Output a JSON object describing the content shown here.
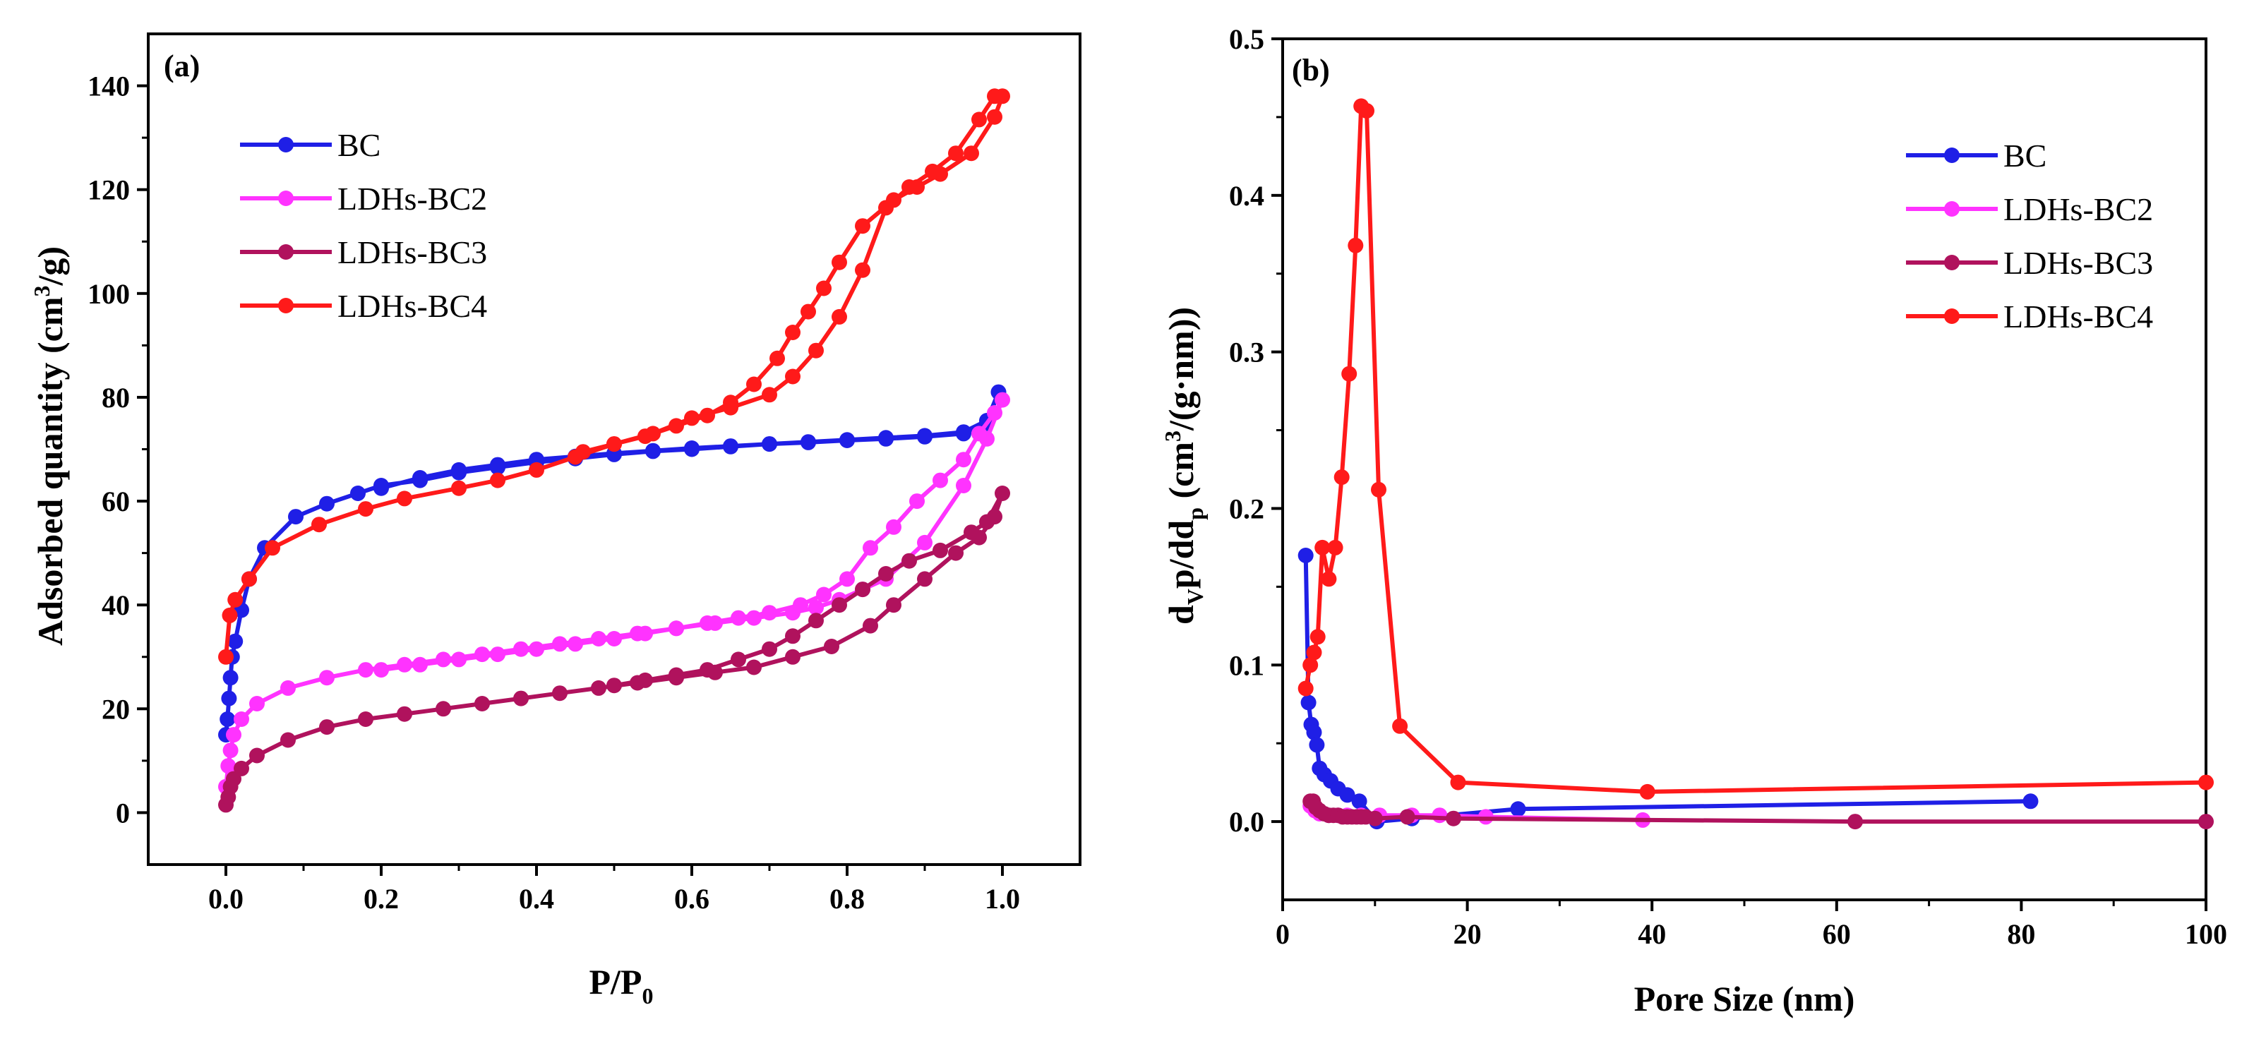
{
  "chart_data": [
    {
      "panel": "(a)",
      "type": "line",
      "xlabel": "P/P",
      "xlabel_sub": "0",
      "ylabel": "Adsorbed quantity (cm",
      "ylabel_sup": "3",
      "ylabel_end": "/g)",
      "xlim": [
        -0.1,
        1.1
      ],
      "ylim": [
        -10,
        150
      ],
      "xticks": [
        0.0,
        0.2,
        0.4,
        0.6,
        0.8,
        1.0
      ],
      "xtick_labels": [
        "0.0",
        "0.2",
        "0.4",
        "0.6",
        "0.8",
        "1.0"
      ],
      "yticks": [
        0,
        20,
        40,
        60,
        80,
        100,
        120,
        140
      ],
      "ytick_labels": [
        "0",
        "20",
        "40",
        "60",
        "80",
        "100",
        "120",
        "140"
      ],
      "legend": {
        "position": "top-left"
      },
      "series": [
        {
          "name": "BC",
          "color": "#1f1fe6",
          "x": [
            0.0,
            0.002,
            0.004,
            0.006,
            0.008,
            0.012,
            0.02,
            0.03,
            0.05,
            0.09,
            0.13,
            0.17,
            0.2,
            0.25,
            0.3,
            0.35,
            0.4,
            0.45,
            0.5,
            0.55,
            0.6,
            0.65,
            0.7,
            0.75,
            0.8,
            0.85,
            0.9,
            0.95,
            0.98,
            0.995,
            0.98,
            0.95,
            0.9,
            0.85,
            0.8,
            0.75,
            0.7,
            0.65,
            0.6,
            0.55,
            0.5,
            0.45,
            0.4,
            0.35,
            0.3,
            0.25,
            0.2
          ],
          "y": [
            15,
            18,
            22,
            26,
            30,
            33,
            39,
            45,
            51,
            57,
            59.5,
            61.5,
            63,
            64,
            65.5,
            66.5,
            67.5,
            68.2,
            69,
            69.6,
            70,
            70.5,
            71,
            71.3,
            71.7,
            72,
            72.4,
            73,
            75,
            81,
            75.5,
            73.3,
            72.6,
            72.2,
            71.8,
            71.4,
            71,
            70.6,
            70.2,
            69.7,
            69.2,
            68.6,
            68,
            67,
            66,
            64.5,
            62.5
          ]
        },
        {
          "name": "LDHs-BC2",
          "color": "#ff33ff",
          "x": [
            0.0,
            0.003,
            0.006,
            0.01,
            0.02,
            0.04,
            0.08,
            0.13,
            0.18,
            0.23,
            0.28,
            0.33,
            0.38,
            0.43,
            0.48,
            0.53,
            0.58,
            0.63,
            0.68,
            0.73,
            0.76,
            0.79,
            0.82,
            0.85,
            0.9,
            0.95,
            0.98,
            1.0,
            0.99,
            0.97,
            0.95,
            0.92,
            0.89,
            0.86,
            0.83,
            0.8,
            0.77,
            0.74,
            0.7,
            0.66,
            0.62,
            0.58,
            0.54,
            0.5,
            0.45,
            0.4,
            0.35,
            0.3,
            0.25,
            0.2
          ],
          "y": [
            5,
            9,
            12,
            15,
            18,
            21,
            24,
            26,
            27.5,
            28.5,
            29.5,
            30.5,
            31.5,
            32.5,
            33.5,
            34.5,
            35.5,
            36.5,
            37.5,
            38.5,
            39.5,
            41,
            43,
            45,
            52,
            63,
            72,
            79.5,
            77,
            73,
            68,
            64,
            60,
            55,
            51,
            45,
            42,
            40,
            38.5,
            37.5,
            36.5,
            35.5,
            34.5,
            33.5,
            32.5,
            31.5,
            30.5,
            29.5,
            28.5,
            27.5
          ]
        },
        {
          "name": "LDHs-BC3",
          "color": "#b0125d",
          "x": [
            0.0,
            0.003,
            0.006,
            0.01,
            0.02,
            0.04,
            0.08,
            0.13,
            0.18,
            0.23,
            0.28,
            0.33,
            0.38,
            0.43,
            0.48,
            0.53,
            0.58,
            0.63,
            0.68,
            0.73,
            0.78,
            0.83,
            0.86,
            0.9,
            0.94,
            0.97,
            0.99,
            1.0,
            0.98,
            0.96,
            0.92,
            0.88,
            0.85,
            0.82,
            0.79,
            0.76,
            0.73,
            0.7,
            0.66,
            0.62,
            0.58,
            0.54,
            0.5
          ],
          "y": [
            1.5,
            3,
            5,
            6.5,
            8.5,
            11,
            14,
            16.5,
            18,
            19,
            20,
            21,
            22,
            23,
            24,
            25,
            26,
            27,
            28,
            30,
            32,
            36,
            40,
            45,
            50,
            53,
            57,
            61.5,
            56,
            54,
            50.5,
            48.5,
            46,
            43,
            40,
            37,
            34,
            31.5,
            29.5,
            27.5,
            26.5,
            25.5,
            24.5
          ]
        },
        {
          "name": "LDHs-BC4",
          "color": "#ff1a1a",
          "x": [
            0.0,
            0.005,
            0.012,
            0.03,
            0.06,
            0.12,
            0.18,
            0.23,
            0.3,
            0.35,
            0.4,
            0.45,
            0.5,
            0.55,
            0.6,
            0.65,
            0.7,
            0.73,
            0.76,
            0.79,
            0.82,
            0.85,
            0.88,
            0.91,
            0.94,
            0.97,
            0.99,
            1.0,
            0.99,
            0.96,
            0.92,
            0.89,
            0.86,
            0.82,
            0.79,
            0.77,
            0.75,
            0.73,
            0.71,
            0.68,
            0.65,
            0.62,
            0.58,
            0.54,
            0.5,
            0.46
          ],
          "y": [
            30,
            38,
            41,
            45,
            51,
            55.5,
            58.5,
            60.5,
            62.5,
            64,
            66,
            68.5,
            71,
            73,
            76,
            78,
            80.5,
            84,
            89,
            95.5,
            104.5,
            116.5,
            120.5,
            123.5,
            127,
            133.5,
            138,
            138,
            134,
            127,
            123,
            120.5,
            118,
            113,
            106,
            101,
            96.5,
            92.5,
            87.5,
            82.5,
            79,
            76.5,
            74.5,
            72.5,
            71,
            69.5
          ]
        }
      ]
    },
    {
      "panel": "(b)",
      "type": "line",
      "xlabel": "Pore Size (nm)",
      "ylabel_parts": [
        "d",
        "V",
        "p/dd",
        "p",
        " (cm",
        "3",
        "/(g·nm))"
      ],
      "xlim": [
        0,
        100
      ],
      "ylim": [
        -0.05,
        0.5
      ],
      "xticks": [
        0,
        20,
        40,
        60,
        80,
        100
      ],
      "xtick_labels": [
        "0",
        "20",
        "40",
        "60",
        "80",
        "100"
      ],
      "yticks": [
        0.0,
        0.1,
        0.2,
        0.3,
        0.4,
        0.5
      ],
      "ytick_labels": [
        "0.0",
        "0.1",
        "0.2",
        "0.3",
        "0.4",
        "0.5"
      ],
      "legend": {
        "position": "top-right"
      },
      "series": [
        {
          "name": "BC",
          "color": "#1f1fe6",
          "x": [
            2.5,
            2.8,
            3.1,
            3.4,
            3.7,
            4.0,
            4.5,
            5.2,
            6.0,
            7.0,
            8.3,
            10.2,
            14.0,
            25.5,
            81.0
          ],
          "y": [
            0.17,
            0.076,
            0.062,
            0.057,
            0.049,
            0.034,
            0.03,
            0.026,
            0.021,
            0.017,
            0.013,
            0.0,
            0.002,
            0.008,
            0.013
          ]
        },
        {
          "name": "LDHs-BC2",
          "color": "#ff33ff",
          "x": [
            3.0,
            3.5,
            4.0,
            5.0,
            6.0,
            7.0,
            8.5,
            10.5,
            14.0,
            17.0,
            22.0,
            39.0
          ],
          "y": [
            0.01,
            0.007,
            0.005,
            0.004,
            0.004,
            0.004,
            0.004,
            0.004,
            0.004,
            0.004,
            0.003,
            0.001
          ]
        },
        {
          "name": "LDHs-BC3",
          "color": "#b0125d",
          "x": [
            3.0,
            3.3,
            3.6,
            4.0,
            4.5,
            5.0,
            5.5,
            6.0,
            6.5,
            7.0,
            7.5,
            8.0,
            8.5,
            9.0,
            10.0,
            13.5,
            18.5,
            62.0,
            100.0
          ],
          "y": [
            0.013,
            0.013,
            0.009,
            0.007,
            0.005,
            0.004,
            0.004,
            0.004,
            0.003,
            0.003,
            0.003,
            0.003,
            0.003,
            0.003,
            0.002,
            0.003,
            0.002,
            0.0,
            0.0
          ]
        },
        {
          "name": "LDHs-BC4",
          "color": "#ff1a1a",
          "x": [
            2.5,
            3.0,
            3.4,
            3.8,
            4.3,
            5.0,
            5.7,
            6.4,
            7.2,
            7.9,
            8.5,
            9.1,
            10.4,
            12.7,
            19.0,
            39.5,
            100.0
          ],
          "y": [
            0.085,
            0.1,
            0.108,
            0.118,
            0.175,
            0.155,
            0.175,
            0.22,
            0.286,
            0.368,
            0.457,
            0.454,
            0.212,
            0.061,
            0.025,
            0.019,
            0.025
          ]
        }
      ]
    }
  ]
}
